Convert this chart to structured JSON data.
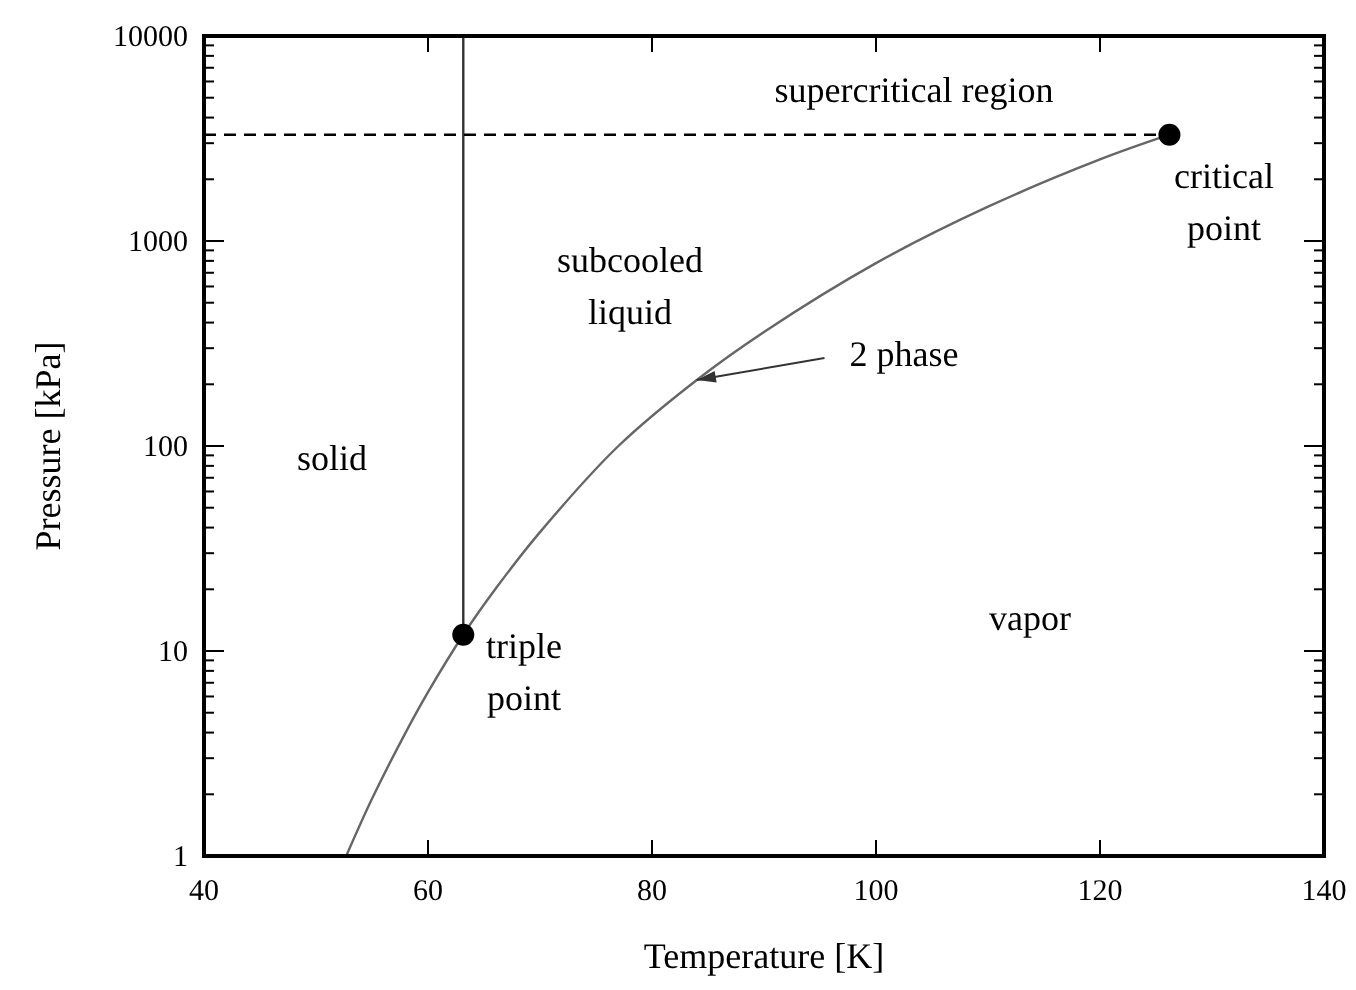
{
  "chart_data": {
    "type": "line",
    "xlabel": "Temperature [K]",
    "ylabel": "Pressure [kPa]",
    "log": "y",
    "xlim": [
      40,
      140
    ],
    "xticks": [
      40,
      60,
      80,
      100,
      120,
      140
    ],
    "ylim": [
      1,
      10000
    ],
    "yticks": [
      1,
      {
        "value": 2,
        "label": null
      },
      {
        "value": 3,
        "label": null
      },
      {
        "value": 4,
        "label": null
      },
      {
        "value": 5,
        "label": null
      },
      {
        "value": 6,
        "label": null
      },
      {
        "value": 7,
        "label": null
      },
      {
        "value": 8,
        "label": null
      },
      {
        "value": 9,
        "label": null
      },
      10,
      {
        "value": 20,
        "label": null
      },
      {
        "value": 30,
        "label": null
      },
      {
        "value": 40,
        "label": null
      },
      {
        "value": 50,
        "label": null
      },
      {
        "value": 60,
        "label": null
      },
      {
        "value": 70,
        "label": null
      },
      {
        "value": 80,
        "label": null
      },
      {
        "value": 90,
        "label": null
      },
      100,
      {
        "value": 200,
        "label": null
      },
      {
        "value": 300,
        "label": null
      },
      {
        "value": 400,
        "label": null
      },
      {
        "value": 500,
        "label": null
      },
      {
        "value": 600,
        "label": null
      },
      {
        "value": 700,
        "label": null
      },
      {
        "value": 800,
        "label": null
      },
      {
        "value": 900,
        "label": null
      },
      1000,
      {
        "value": 2000,
        "label": null
      },
      {
        "value": 3000,
        "label": null
      },
      {
        "value": 4000,
        "label": null
      },
      {
        "value": 5000,
        "label": null
      },
      {
        "value": 6000,
        "label": null
      },
      {
        "value": 7000,
        "label": null
      },
      {
        "value": 8000,
        "label": null
      },
      {
        "value": 9000,
        "label": null
      },
      10000
    ],
    "series": [
      {
        "color": "#666666",
        "x": [
          52.7,
          55,
          58,
          60,
          63.15,
          66,
          70,
          77,
          84,
          90,
          100,
          110,
          120,
          126.2
        ],
        "values": [
          1,
          1.9,
          4,
          6.3,
          12,
          20,
          38,
          100,
          210,
          360,
          780,
          1470,
          2500,
          3300
        ]
      },
      {
        "type": "line",
        "color": "#333333",
        "x": [
          63.15,
          63.15
        ],
        "values": [
          12,
          10000
        ]
      },
      {
        "type": "line",
        "color": "#000000",
        "line_style": "dashed",
        "x": [
          40,
          126.2
        ],
        "values": [
          3300,
          3300
        ]
      },
      {
        "type": "scatter",
        "color": "#000000",
        "marker": "circle",
        "x": [
          63.15,
          126.2
        ],
        "values": [
          12,
          3300
        ]
      }
    ],
    "annotations": [
      "supercritical region",
      "subcooled\nliquid",
      "solid",
      "vapor",
      {
        "text": "2 phase",
        "x": 84,
        "y": 210
      },
      "triple\npoint",
      "critical\npoint"
    ]
  }
}
